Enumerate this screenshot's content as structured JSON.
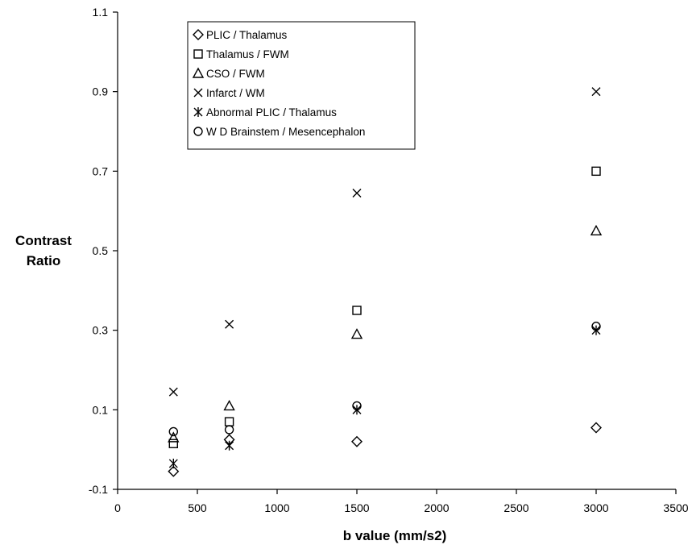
{
  "chart_data": {
    "type": "scatter",
    "xlabel": "b value (mm/s2)",
    "ylabel_lines": [
      "Contrast",
      "Ratio"
    ],
    "xlim": [
      0,
      3500
    ],
    "ylim": [
      -0.1,
      1.1
    ],
    "x_ticks": [
      0,
      500,
      1000,
      1500,
      2000,
      2500,
      3000,
      3500
    ],
    "y_ticks": [
      "-0.1",
      "0.1",
      "0.3",
      "0.5",
      "0.7",
      "0.9",
      "1.1"
    ],
    "grid": false,
    "legend_position": "top-left",
    "series": [
      {
        "name": "PLIC / Thalamus",
        "marker": "diamond",
        "points": [
          [
            350,
            -0.055
          ],
          [
            700,
            0.025
          ],
          [
            1500,
            0.02
          ],
          [
            3000,
            0.055
          ]
        ]
      },
      {
        "name": "Thalamus / FWM",
        "marker": "square",
        "points": [
          [
            350,
            0.015
          ],
          [
            700,
            0.07
          ],
          [
            1500,
            0.35
          ],
          [
            3000,
            0.7
          ]
        ]
      },
      {
        "name": "CSO / FWM",
        "marker": "triangle",
        "points": [
          [
            350,
            0.03
          ],
          [
            700,
            0.11
          ],
          [
            1500,
            0.29
          ],
          [
            3000,
            0.55
          ]
        ]
      },
      {
        "name": "Infarct / WM",
        "marker": "x",
        "points": [
          [
            350,
            0.145
          ],
          [
            700,
            0.315
          ],
          [
            1500,
            0.645
          ],
          [
            3000,
            0.9
          ]
        ]
      },
      {
        "name": "Abnormal PLIC / Thalamus",
        "marker": "asterisk",
        "points": [
          [
            350,
            -0.035
          ],
          [
            700,
            0.01
          ],
          [
            1500,
            0.1
          ],
          [
            3000,
            0.3
          ]
        ]
      },
      {
        "name": "W D Brainstem / Mesencephalon",
        "marker": "circle",
        "points": [
          [
            350,
            0.045
          ],
          [
            700,
            0.05
          ],
          [
            1500,
            0.11
          ],
          [
            3000,
            0.31
          ]
        ]
      }
    ]
  }
}
